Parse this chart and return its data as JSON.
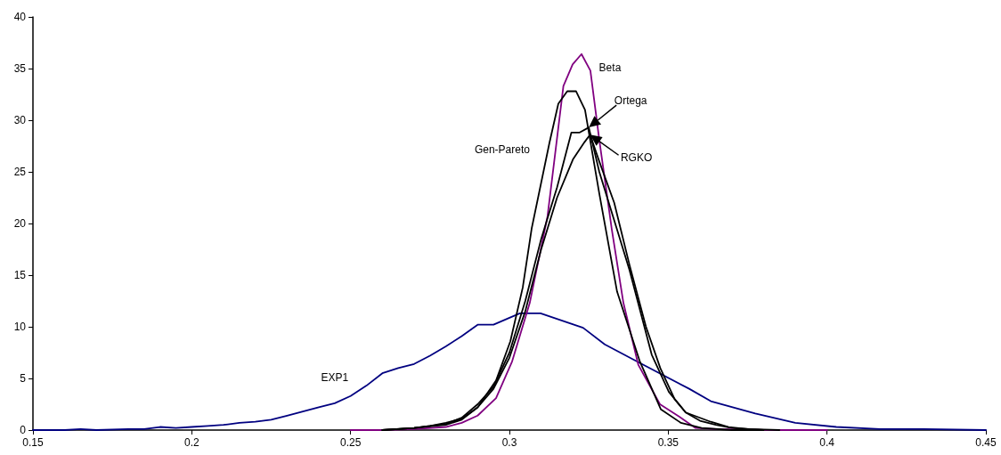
{
  "chart_data": {
    "type": "line",
    "xlim": [
      0.15,
      0.45
    ],
    "xticks": [
      0.15,
      0.2,
      0.25,
      0.3,
      0.35,
      0.4,
      0.45
    ],
    "ylim": [
      0,
      40
    ],
    "yticks": [
      0,
      5,
      10,
      15,
      20,
      25,
      30,
      35,
      40
    ],
    "grid": false,
    "marker": "none",
    "line_style": "solid",
    "series": [
      {
        "name": "EXP1",
        "color": "#000080",
        "x": [
          0.15,
          0.16,
          0.165,
          0.17,
          0.18,
          0.185,
          0.19,
          0.195,
          0.2,
          0.205,
          0.21,
          0.215,
          0.22,
          0.225,
          0.23,
          0.235,
          0.24,
          0.245,
          0.25,
          0.255,
          0.26,
          0.265,
          0.27,
          0.275,
          0.28,
          0.285,
          0.29,
          0.295,
          0.3033,
          0.3098,
          0.3232,
          0.33,
          0.3398,
          0.3566,
          0.3634,
          0.3774,
          0.39,
          0.4029,
          0.4166,
          0.4306,
          0.45
        ],
        "values": [
          0,
          0,
          0.1,
          0,
          0.1,
          0.1,
          0.3,
          0.2,
          0.3,
          0.4,
          0.5,
          0.7,
          0.8,
          1.0,
          1.4,
          1.8,
          2.2,
          2.6,
          3.3,
          4.3,
          5.5,
          6.0,
          6.4,
          7.2,
          8.1,
          9.1,
          10.2,
          10.2,
          11.3,
          11.3,
          9.9,
          8.3,
          6.7,
          4.0,
          2.8,
          1.6,
          0.7,
          0.3,
          0.1,
          0.1,
          0
        ]
      },
      {
        "name": "Beta",
        "color": "#800080",
        "x": [
          0.25,
          0.26,
          0.27,
          0.28,
          0.285,
          0.29,
          0.2958,
          0.3008,
          0.3064,
          0.312,
          0.317,
          0.3199,
          0.3227,
          0.3255,
          0.3283,
          0.3322,
          0.3359,
          0.3406,
          0.3474,
          0.3535,
          0.3586,
          0.365,
          0.38,
          0.4
        ],
        "values": [
          0,
          0,
          0.1,
          0.3,
          0.7,
          1.4,
          3.1,
          6.6,
          12.3,
          20.7,
          33.3,
          35.4,
          36.4,
          34.8,
          28.1,
          19.5,
          12.3,
          6.3,
          2.5,
          1.3,
          0.2,
          0.1,
          0,
          0
        ]
      },
      {
        "name": "Gen-Pareto",
        "color": "#000000",
        "x": [
          0.26,
          0.265,
          0.27,
          0.275,
          0.28,
          0.285,
          0.29,
          0.2958,
          0.3003,
          0.3042,
          0.307,
          0.3126,
          0.3154,
          0.3182,
          0.321,
          0.3238,
          0.3283,
          0.3339,
          0.341,
          0.3477,
          0.354,
          0.3605,
          0.37,
          0.38
        ],
        "values": [
          0,
          0.1,
          0.2,
          0.4,
          0.7,
          1.1,
          2.2,
          4.8,
          8.6,
          13.8,
          19.5,
          27.8,
          31.6,
          32.8,
          32.8,
          31.0,
          22.9,
          13.4,
          6.7,
          2.0,
          0.7,
          0.2,
          0,
          0
        ]
      },
      {
        "name": "Ortega",
        "color": "#000000",
        "x": [
          0.26,
          0.27,
          0.28,
          0.285,
          0.29,
          0.295,
          0.3,
          0.305,
          0.31,
          0.315,
          0.3195,
          0.322,
          0.325,
          0.3283,
          0.3338,
          0.3378,
          0.3448,
          0.3502,
          0.3555,
          0.3634,
          0.369,
          0.375,
          0.385
        ],
        "values": [
          0,
          0.2,
          0.6,
          1.2,
          2.5,
          4.2,
          7.5,
          12.5,
          18.5,
          23.5,
          28.8,
          28.8,
          29.3,
          25,
          19.5,
          15.5,
          7.3,
          3.7,
          1.7,
          0.8,
          0.3,
          0.1,
          0
        ]
      },
      {
        "name": "RGKO",
        "color": "#000000",
        "x": [
          0.26,
          0.27,
          0.28,
          0.285,
          0.29,
          0.295,
          0.3,
          0.305,
          0.31,
          0.315,
          0.32,
          0.3237,
          0.3254,
          0.3283,
          0.333,
          0.3378,
          0.343,
          0.3475,
          0.352,
          0.3555,
          0.36,
          0.365,
          0.37,
          0.38
        ],
        "values": [
          0,
          0.2,
          0.5,
          1.0,
          2.2,
          4.0,
          7.0,
          11.5,
          17.5,
          22.5,
          26.2,
          27.9,
          28.6,
          26,
          22,
          16,
          10,
          6,
          3,
          1.7,
          0.9,
          0.5,
          0.2,
          0
        ]
      }
    ]
  }
}
